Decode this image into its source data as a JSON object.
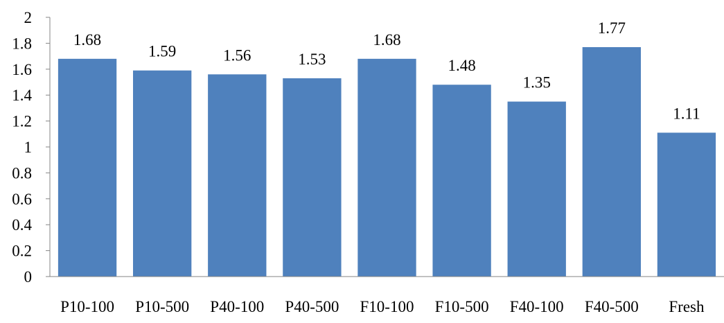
{
  "chart_data": {
    "type": "bar",
    "categories": [
      "P10-100",
      "P10-500",
      "P40-100",
      "P40-500",
      "F10-100",
      "F10-500",
      "F40-100",
      "F40-500",
      "Fresh"
    ],
    "values": [
      1.68,
      1.59,
      1.56,
      1.53,
      1.68,
      1.48,
      1.35,
      1.77,
      1.11
    ],
    "value_labels": [
      "1.68",
      "1.59",
      "1.56",
      "1.53",
      "1.68",
      "1.48",
      "1.35",
      "1.77",
      "1.11"
    ],
    "y_ticks": [
      "0",
      "0.2",
      "0.4",
      "0.6",
      "0.8",
      "1",
      "1.2",
      "1.4",
      "1.6",
      "1.8",
      "2"
    ],
    "title": "",
    "xlabel": "",
    "ylabel": "",
    "ylim": [
      0,
      2
    ],
    "grid": false,
    "legend": "none",
    "colors": {
      "bar": "#4F81BD",
      "axis": "#868686",
      "text": "#000000"
    }
  }
}
